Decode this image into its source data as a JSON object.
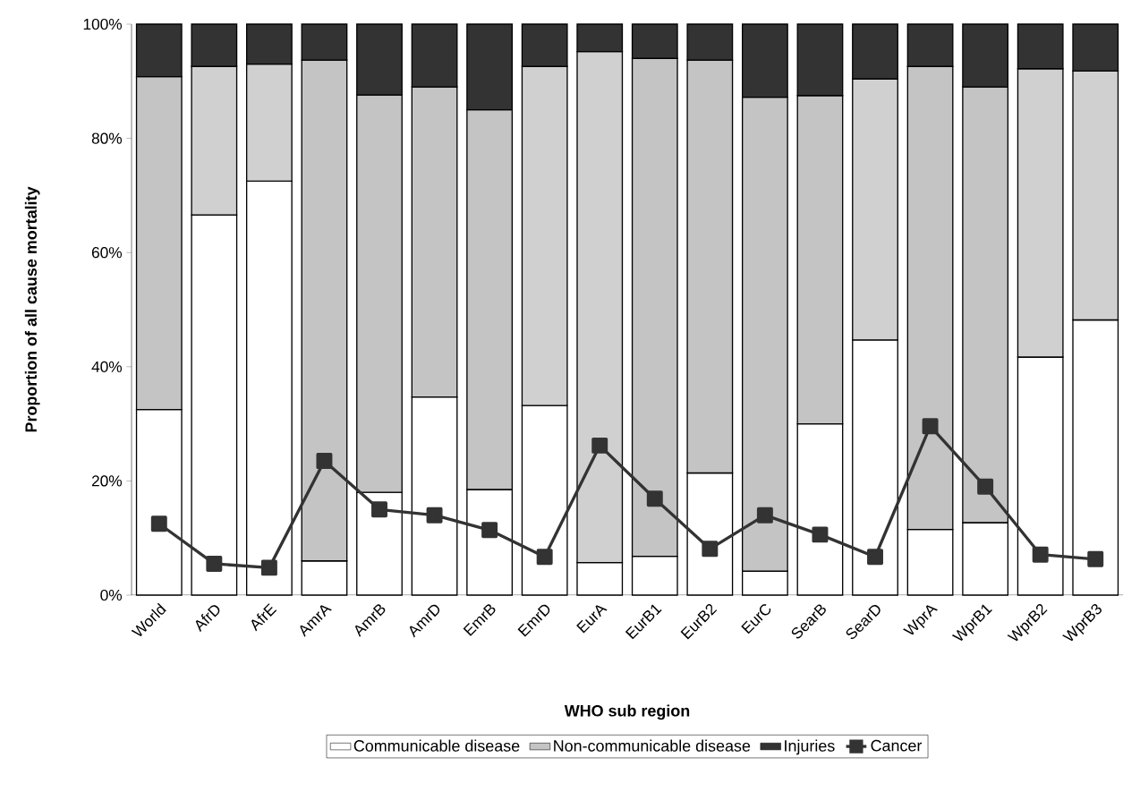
{
  "chart_data": {
    "type": "bar",
    "stacked": true,
    "xlabel": "WHO sub region",
    "ylabel": "Proportion of all cause mortality",
    "categories": [
      "World",
      "AfrD",
      "AfrE",
      "AmrA",
      "AmrB",
      "AmrD",
      "EmrB",
      "EmrD",
      "EurA",
      "EurB1",
      "EurB2",
      "EurC",
      "SearB",
      "SearD",
      "WprA",
      "WprB1",
      "WprB2",
      "WprB3"
    ],
    "ylim": [
      0,
      100
    ],
    "yticks": [
      {
        "value": 0,
        "label": "0%"
      },
      {
        "value": 20,
        "label": "20%"
      },
      {
        "value": 40,
        "label": "40%"
      },
      {
        "value": 60,
        "label": "60%"
      },
      {
        "value": 80,
        "label": "80%"
      },
      {
        "value": 100,
        "label": "100%"
      }
    ],
    "legend": "bottom",
    "grid": false,
    "series": [
      {
        "name": "Communicable disease",
        "color": "#ffffff",
        "values": [
          32.5,
          66.6,
          72.5,
          6.0,
          18.0,
          34.7,
          18.5,
          33.2,
          5.7,
          6.8,
          21.4,
          4.2,
          30.0,
          44.7,
          11.5,
          12.7,
          41.7,
          48.2
        ]
      },
      {
        "name": "Non-communicable disease",
        "color": "#c4c4c4",
        "colors": [
          "#c4c4c4",
          "#d0d0d0",
          "#d0d0d0",
          "#c4c4c4",
          "#c4c4c4",
          "#c4c4c4",
          "#c4c4c4",
          "#d0d0d0",
          "#d0d0d0",
          "#c4c4c4",
          "#c4c4c4",
          "#c4c4c4",
          "#c4c4c4",
          "#d0d0d0",
          "#c4c4c4",
          "#c4c4c4",
          "#d0d0d0",
          "#d0d0d0"
        ],
        "values": [
          58.3,
          26.0,
          20.5,
          87.7,
          69.6,
          54.3,
          66.5,
          59.4,
          89.5,
          87.2,
          72.3,
          83.0,
          57.5,
          45.7,
          81.1,
          76.3,
          50.5,
          43.6
        ]
      },
      {
        "name": "Injuries",
        "color": "#333333",
        "values": [
          9.2,
          7.4,
          7.0,
          6.3,
          12.4,
          11.0,
          15.0,
          7.4,
          4.8,
          6.0,
          6.3,
          12.8,
          12.5,
          9.6,
          7.4,
          11.0,
          7.8,
          8.2
        ]
      },
      {
        "name": "Cancer",
        "type": "line",
        "color": "#333333",
        "marker": "square",
        "line_style": "solid",
        "values": [
          12.5,
          5.5,
          4.8,
          23.5,
          15.0,
          14.0,
          11.4,
          6.7,
          26.2,
          16.9,
          8.1,
          14.0,
          10.6,
          6.7,
          29.6,
          19.0,
          7.1,
          6.3
        ]
      }
    ]
  }
}
